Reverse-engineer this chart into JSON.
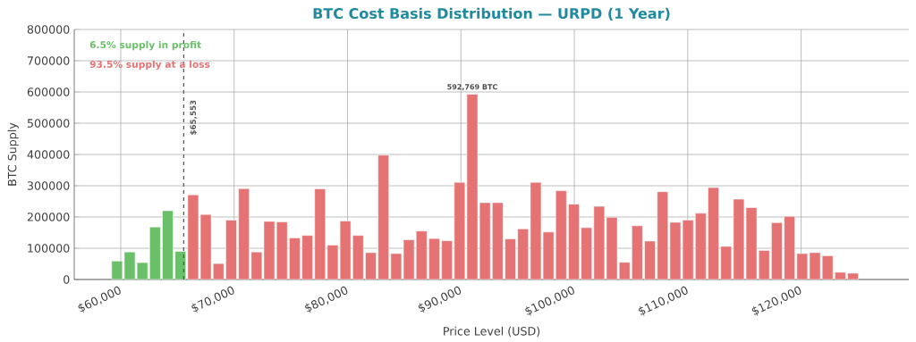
{
  "chart_data": {
    "type": "bar",
    "title": "BTC Cost Basis Distribution — URPD (1 Year)",
    "xlabel": "Price Level (USD)",
    "ylabel": "BTC Supply",
    "x": [
      59670,
      60789,
      61908,
      63027,
      64146,
      65265,
      66384,
      67503,
      68622,
      69741,
      70860,
      71979,
      73098,
      74217,
      75336,
      76455,
      77574,
      78693,
      79812,
      80931,
      82050,
      83169,
      84288,
      85407,
      86526,
      87645,
      88764,
      89883,
      91002,
      92121,
      93240,
      94359,
      95478,
      96597,
      97716,
      98835,
      99954,
      101073,
      102192,
      103311,
      104430,
      105549,
      106668,
      107787,
      108906,
      110025,
      111144,
      112263,
      113382,
      114501,
      115620,
      116739,
      117858,
      118977,
      120096,
      121215,
      122334,
      123453,
      124572
    ],
    "values": [
      59000,
      88000,
      54000,
      168000,
      220000,
      90000,
      271000,
      208000,
      51000,
      190000,
      291000,
      88000,
      186000,
      184000,
      133000,
      141000,
      290000,
      110000,
      187000,
      141000,
      86000,
      398000,
      83000,
      127000,
      155000,
      131000,
      124000,
      311000,
      592769,
      246000,
      246000,
      130000,
      162000,
      311000,
      152000,
      284000,
      241000,
      166000,
      234000,
      199000,
      55000,
      172000,
      123000,
      281000,
      183000,
      190000,
      212000,
      294000,
      106000,
      257000,
      230000,
      93000,
      182000,
      202000,
      83000,
      86000,
      76000,
      23000,
      20000
    ],
    "colors": [
      "#6abf69",
      "#6abf69",
      "#6abf69",
      "#6abf69",
      "#6abf69",
      "#6abf69",
      "#e57373",
      "#e57373",
      "#e57373",
      "#e57373",
      "#e57373",
      "#e57373",
      "#e57373",
      "#e57373",
      "#e57373",
      "#e57373",
      "#e57373",
      "#e57373",
      "#e57373",
      "#e57373",
      "#e57373",
      "#e57373",
      "#e57373",
      "#e57373",
      "#e57373",
      "#e57373",
      "#e57373",
      "#e57373",
      "#e57373",
      "#e57373",
      "#e57373",
      "#e57373",
      "#e57373",
      "#e57373",
      "#e57373",
      "#e57373",
      "#e57373",
      "#e57373",
      "#e57373",
      "#e57373",
      "#e57373",
      "#e57373",
      "#e57373",
      "#e57373",
      "#e57373",
      "#e57373",
      "#e57373",
      "#e57373",
      "#e57373",
      "#e57373",
      "#e57373",
      "#e57373",
      "#e57373",
      "#e57373",
      "#e57373",
      "#e57373",
      "#e57373",
      "#e57373",
      "#e57373"
    ],
    "xlim": [
      55900,
      129500
    ],
    "ylim": [
      0,
      800000
    ],
    "xticks": [
      {
        "value": 60000,
        "label": "$60,000"
      },
      {
        "value": 70000,
        "label": "$70,000"
      },
      {
        "value": 80000,
        "label": "$80,000"
      },
      {
        "value": 90000,
        "label": "$90,000"
      },
      {
        "value": 100000,
        "label": "$100,000"
      },
      {
        "value": 110000,
        "label": "$110,000"
      },
      {
        "value": 120000,
        "label": "$120,000"
      }
    ],
    "yticks": [
      0,
      100000,
      200000,
      300000,
      400000,
      500000,
      600000,
      700000,
      800000
    ],
    "ref_lines": [
      {
        "axis": "x",
        "value": 65553,
        "label": "$65,553",
        "color": "#555555",
        "line_style": "dashed"
      }
    ],
    "annotations": [
      "6.5% supply in profit",
      "93.5% supply at a loss",
      {
        "text": "592,769 BTC",
        "x": 91002,
        "y": 592769
      }
    ],
    "grid": true
  }
}
